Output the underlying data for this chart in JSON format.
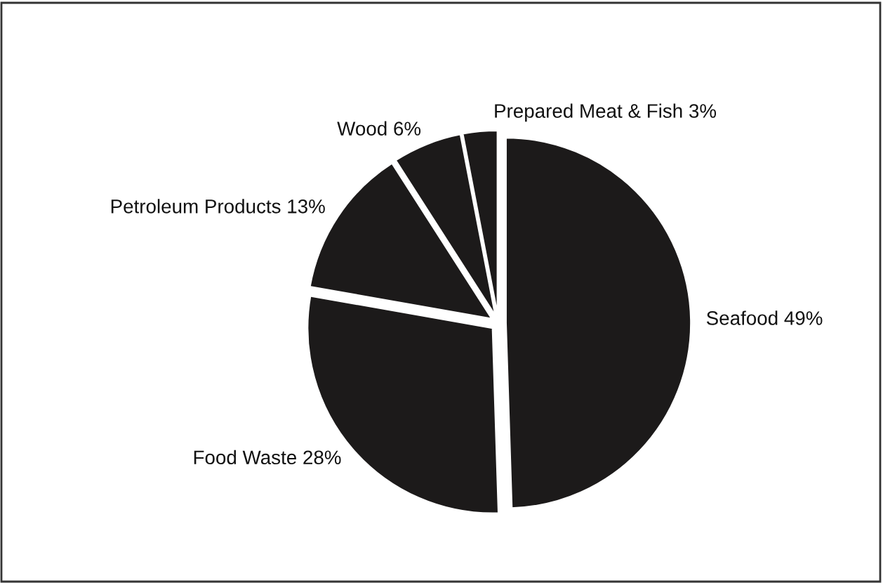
{
  "chart_data": {
    "type": "pie",
    "categories": [
      "Seafood",
      "Food Waste",
      "Petroleum Products",
      "Wood",
      "Prepared Meat & Fish"
    ],
    "values": [
      49,
      28,
      13,
      6,
      3
    ],
    "value_labels": [
      "49%",
      "28%",
      "13%",
      "6%",
      "3%"
    ],
    "colors": [
      "#1c1a1a",
      "#1c1a1a",
      "#1c1a1a",
      "#1c1a1a",
      "#1c1a1a"
    ]
  }
}
